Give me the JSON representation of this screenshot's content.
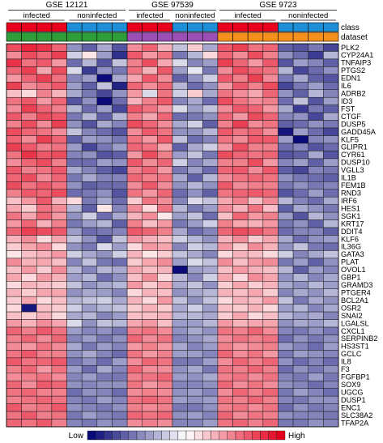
{
  "chart_data": {
    "type": "heatmap",
    "title": "",
    "studies": [
      {
        "name": "GSE 12121",
        "conditions": [
          "infected",
          "noninfected"
        ],
        "n": [
          4,
          4
        ]
      },
      {
        "name": "GSE 97539",
        "conditions": [
          "infected",
          "noninfected"
        ],
        "n": [
          3,
          3
        ]
      },
      {
        "name": "GSE 9723",
        "conditions": [
          "infected",
          "noninfected"
        ],
        "n": [
          4,
          4
        ]
      }
    ],
    "annotation_tracks": [
      {
        "label": "class",
        "colors": {
          "infected": "#e8001c",
          "noninfected": "#1e8fd6"
        }
      },
      {
        "label": "dataset",
        "colors": {
          "GSE 12121": "#2e9e3a",
          "GSE 97539": "#9b4fb5",
          "GSE 9723": "#f5901e"
        }
      }
    ],
    "genes": [
      "PLK2",
      "CYP24A1",
      "TNFAIP3",
      "PTGS2",
      "EDN1",
      "IL6",
      "ADRB2",
      "ID3",
      "FST",
      "CTGF",
      "DUSP5",
      "GADD45A",
      "KLF5",
      "GLIPR1",
      "CYR61",
      "DUSP10",
      "VGLL3",
      "IL1B",
      "FEM1B",
      "RND3",
      "IRF6",
      "HES1",
      "SGK1",
      "KRT17",
      "DDIT4",
      "KLF6",
      "IL36G",
      "GATA3",
      "PLAT",
      "OVOL1",
      "GBP1",
      "GRAMD3",
      "PTGER4",
      "BCL2A1",
      "OSR2",
      "SNAI2",
      "LGALSL",
      "CXCL1",
      "SERPINB2",
      "HS3ST1",
      "GCLC",
      "IL8",
      "F3",
      "FGFBP1",
      "SOX9",
      "UGCG",
      "DUSP1",
      "ENC1",
      "SLC38A2",
      "TFAP2A"
    ],
    "value_range": [
      -2,
      2
    ],
    "color_scale": {
      "low": "#0a0a78",
      "mid": "#ffffff",
      "high": "#e3001b",
      "low_label": "Low",
      "high_label": "High"
    },
    "matrix": [
      [
        1.4,
        1.7,
        1.6,
        1.2,
        -0.9,
        -1.3,
        -0.7,
        -1.4,
        0.9,
        1.2,
        0.6,
        -0.5,
        0.4,
        -0.7,
        1.3,
        1.5,
        1.1,
        1.2,
        -1.3,
        -1.4,
        -1.1,
        -1.5
      ],
      [
        0.9,
        1.4,
        1.2,
        1.5,
        -0.4,
        0.2,
        -0.8,
        -1.7,
        1.3,
        0.8,
        1.1,
        -1.1,
        -0.6,
        0.3,
        1.2,
        0.9,
        1.4,
        1.0,
        -0.9,
        -1.2,
        -1.6,
        -0.6
      ],
      [
        1.6,
        1.1,
        1.3,
        0.8,
        -1.2,
        -0.6,
        -1.4,
        -0.5,
        1.0,
        1.4,
        0.7,
        -0.3,
        -1.0,
        -0.8,
        1.5,
        1.2,
        0.8,
        1.3,
        -1.4,
        -0.8,
        -1.0,
        -1.3
      ],
      [
        1.2,
        1.5,
        0.7,
        1.4,
        -0.3,
        -1.6,
        -0.9,
        -1.1,
        1.1,
        0.6,
        1.3,
        -0.8,
        -0.2,
        -1.1,
        0.9,
        1.4,
        1.2,
        1.1,
        -0.6,
        -1.5,
        -1.2,
        -0.9
      ],
      [
        0.8,
        1.2,
        1.5,
        1.1,
        -1.0,
        -0.8,
        -2.0,
        -0.7,
        0.7,
        1.3,
        0.9,
        -1.3,
        -0.9,
        -0.4,
        1.3,
        1.0,
        1.5,
        0.9,
        -1.1,
        -0.7,
        -1.3,
        -1.4
      ],
      [
        1.5,
        0.9,
        1.1,
        1.3,
        -0.8,
        -1.3,
        -0.5,
        -1.8,
        1.2,
        0.9,
        1.2,
        -0.6,
        -1.2,
        -0.9,
        0.8,
        1.3,
        1.0,
        1.4,
        -1.5,
        -1.1,
        -0.8,
        -1.2
      ],
      [
        0.5,
        0.3,
        1.0,
        0.6,
        -0.7,
        -1.1,
        -1.5,
        -0.9,
        0.8,
        -0.3,
        1.1,
        -0.4,
        0.4,
        -0.7,
        1.1,
        0.9,
        0.7,
        1.2,
        -0.9,
        -1.3,
        -0.6,
        -1.0
      ],
      [
        1.1,
        1.3,
        0.8,
        1.2,
        -1.4,
        -0.9,
        -2.0,
        -1.2,
        0.6,
        1.0,
        1.3,
        -1.0,
        -0.7,
        -1.2,
        1.4,
        1.1,
        0.9,
        1.0,
        -1.2,
        -0.5,
        -1.4,
        -0.8
      ],
      [
        0.9,
        1.5,
        1.2,
        1.0,
        -0.6,
        -1.2,
        -0.8,
        -1.5,
        1.3,
        1.1,
        0.8,
        -0.3,
        -0.8,
        -0.5,
        0.9,
        1.3,
        1.2,
        0.8,
        -0.7,
        -1.6,
        -1.1,
        -1.3
      ],
      [
        1.3,
        1.0,
        1.4,
        1.3,
        -1.1,
        -0.6,
        -1.3,
        -0.6,
        1.0,
        0.7,
        1.2,
        -1.2,
        -1.1,
        -0.9,
        1.2,
        0.8,
        1.4,
        1.2,
        -1.0,
        -0.9,
        -1.5,
        -0.7
      ],
      [
        1.0,
        1.4,
        0.9,
        1.5,
        -0.9,
        -1.4,
        -0.7,
        -1.0,
        1.4,
        1.2,
        0.9,
        -0.7,
        -0.4,
        -1.3,
        1.0,
        1.5,
        0.9,
        1.1,
        -1.3,
        -1.2,
        -0.9,
        -1.1
      ],
      [
        1.4,
        1.2,
        1.1,
        0.9,
        -0.5,
        -1.0,
        -1.2,
        -1.4,
        0.9,
        1.3,
        1.1,
        -0.9,
        -0.9,
        -0.6,
        1.3,
        1.1,
        1.2,
        0.9,
        -1.9,
        -0.8,
        -1.2,
        -1.5
      ],
      [
        1.2,
        0.9,
        1.5,
        1.2,
        -1.3,
        -0.8,
        -0.9,
        -1.1,
        1.1,
        0.8,
        1.3,
        -0.5,
        -1.2,
        -1.0,
        1.1,
        0.9,
        1.3,
        1.3,
        -0.8,
        -2.0,
        -1.0,
        -0.9
      ],
      [
        1.5,
        1.3,
        1.0,
        1.1,
        -0.8,
        -1.5,
        -1.1,
        -0.8,
        1.2,
        1.1,
        0.7,
        -1.3,
        -0.7,
        -0.4,
        0.8,
        1.4,
        1.0,
        1.0,
        -1.2,
        -1.0,
        -1.4,
        -1.2
      ],
      [
        1.1,
        1.6,
        1.3,
        1.4,
        -1.0,
        -0.9,
        -1.4,
        -1.3,
        0.8,
        1.4,
        1.0,
        -0.8,
        -0.5,
        -1.1,
        1.4,
        1.2,
        1.1,
        1.2,
        -1.4,
        -1.3,
        -0.7,
        -1.4
      ],
      [
        0.9,
        1.2,
        1.4,
        1.0,
        -1.2,
        -1.2,
        -0.8,
        -0.9,
        1.3,
        0.9,
        1.2,
        -0.4,
        -1.0,
        -0.7,
        1.0,
        1.0,
        1.4,
        0.8,
        -1.0,
        -0.8,
        -1.3,
        -0.8
      ],
      [
        1.3,
        1.0,
        1.1,
        1.3,
        -0.7,
        -1.0,
        -1.3,
        -1.5,
        1.0,
        1.2,
        0.8,
        -1.1,
        -0.8,
        -1.2,
        1.2,
        1.3,
        0.9,
        1.3,
        -1.3,
        -1.5,
        -1.0,
        -1.1
      ],
      [
        1.2,
        1.4,
        0.9,
        1.2,
        -1.1,
        -0.7,
        -1.0,
        -1.0,
        1.2,
        1.0,
        1.1,
        -0.7,
        -1.3,
        -0.6,
        0.9,
        1.1,
        1.2,
        1.1,
        -0.9,
        -1.1,
        -1.2,
        -1.3
      ],
      [
        1.4,
        1.1,
        1.3,
        1.1,
        -0.9,
        -1.3,
        -1.2,
        -1.2,
        0.9,
        1.3,
        0.9,
        -0.9,
        -0.6,
        -0.9,
        1.3,
        0.9,
        1.0,
        1.0,
        -1.1,
        -0.9,
        -1.1,
        -1.0
      ],
      [
        1.0,
        1.3,
        1.2,
        1.4,
        -1.2,
        -1.1,
        -0.9,
        -1.4,
        1.1,
        0.8,
        1.2,
        -1.2,
        -0.9,
        -1.3,
        1.1,
        1.2,
        1.3,
        1.2,
        -1.4,
        -1.2,
        -0.8,
        -1.2
      ],
      [
        0.5,
        0.8,
        1.3,
        0.6,
        0.3,
        -1.1,
        -0.7,
        -1.2,
        0.4,
        1.1,
        0.9,
        -1.0,
        -0.3,
        -0.5,
        0.7,
        1.0,
        0.5,
        0.9,
        -0.6,
        -1.0,
        -1.2,
        -0.7
      ],
      [
        0.7,
        0.4,
        1.1,
        0.9,
        -0.6,
        -1.3,
        0.2,
        -1.0,
        0.9,
        0.3,
        1.1,
        -0.6,
        -1.1,
        -0.8,
        0.9,
        0.6,
        1.1,
        0.5,
        -1.3,
        -0.7,
        -0.9,
        -1.1
      ],
      [
        1.1,
        0.7,
        1.2,
        0.8,
        -0.9,
        -0.4,
        -1.2,
        -0.7,
        0.6,
        0.9,
        0.2,
        -0.8,
        -0.5,
        -1.2,
        0.5,
        1.2,
        0.8,
        1.0,
        -0.8,
        -1.4,
        -0.6,
        -0.9
      ],
      [
        0.8,
        1.2,
        0.6,
        1.0,
        -1.1,
        -0.8,
        -0.6,
        -1.3,
        1.0,
        0.5,
        0.8,
        -1.1,
        -0.8,
        -0.4,
        1.0,
        0.7,
        0.6,
        0.8,
        -1.1,
        -0.9,
        -1.3,
        -0.6
      ],
      [
        1.2,
        1.5,
        1.4,
        1.3,
        -0.8,
        -1.2,
        -1.1,
        -1.0,
        1.3,
        1.2,
        1.0,
        -0.7,
        -1.2,
        -1.0,
        1.2,
        1.4,
        1.3,
        1.1,
        -1.2,
        -1.0,
        -1.0,
        -1.3
      ],
      [
        0.6,
        0.9,
        0.3,
        0.7,
        -0.5,
        -0.9,
        -1.4,
        -0.5,
        0.8,
        0.6,
        0.5,
        -0.4,
        -0.6,
        -0.9,
        0.6,
        0.9,
        0.4,
        0.7,
        -0.7,
        -1.2,
        -0.9,
        -0.8
      ],
      [
        0.4,
        0.7,
        0.9,
        0.3,
        -0.9,
        -1.1,
        -0.3,
        -0.8,
        0.3,
        0.8,
        0.7,
        -1.0,
        -0.4,
        -0.6,
        0.8,
        0.4,
        0.9,
        0.6,
        -0.9,
        -0.5,
        -1.1,
        -1.2
      ],
      [
        0.2,
        0.5,
        0.6,
        0.8,
        -0.4,
        -0.7,
        -0.9,
        -0.4,
        0.6,
        0.2,
        0.4,
        -0.5,
        -0.7,
        -1.0,
        0.3,
        0.6,
        0.5,
        0.3,
        -0.4,
        -1.0,
        -0.7,
        -0.5
      ],
      [
        0.9,
        0.6,
        0.7,
        0.5,
        -1.0,
        -0.5,
        -1.1,
        -1.2,
        0.4,
        0.7,
        0.9,
        -0.8,
        -0.3,
        -0.5,
        0.9,
        0.5,
        0.8,
        0.9,
        -1.1,
        -0.8,
        -1.3,
        -0.9
      ],
      [
        0.5,
        0.8,
        0.4,
        0.9,
        -0.6,
        -1.0,
        -0.6,
        -0.7,
        0.7,
        0.5,
        0.6,
        -2.0,
        -0.8,
        -0.7,
        0.5,
        0.8,
        0.6,
        0.5,
        -0.6,
        -1.3,
        -0.8,
        -1.0
      ],
      [
        0.7,
        0.3,
        0.8,
        0.6,
        -0.8,
        -0.6,
        -1.2,
        -0.9,
        0.5,
        0.9,
        0.3,
        -0.6,
        -1.0,
        -0.4,
        0.7,
        0.3,
        0.9,
        0.7,
        -0.9,
        -0.6,
        -1.0,
        -0.7
      ],
      [
        0.3,
        0.6,
        0.5,
        0.4,
        -0.5,
        -0.9,
        -0.7,
        -0.6,
        0.8,
        0.4,
        0.7,
        -0.7,
        -0.5,
        -0.9,
        0.4,
        0.7,
        0.4,
        0.6,
        -0.7,
        -0.9,
        -0.6,
        -0.8
      ],
      [
        0.6,
        0.4,
        0.7,
        0.7,
        -0.9,
        -0.7,
        -0.8,
        -1.0,
        0.3,
        0.6,
        0.5,
        -0.9,
        -0.7,
        -0.6,
        0.6,
        0.5,
        0.7,
        0.4,
        -1.0,
        -0.7,
        -0.9,
        -0.6
      ],
      [
        0.4,
        0.7,
        0.3,
        0.5,
        -0.6,
        -0.5,
        -0.4,
        -0.7,
        0.6,
        0.3,
        0.8,
        -0.5,
        -0.9,
        -0.5,
        0.3,
        0.6,
        0.5,
        0.8,
        -0.5,
        -1.1,
        -0.7,
        -0.9
      ],
      [
        0.3,
        -1.9,
        0.5,
        0.4,
        -0.4,
        -0.8,
        -0.6,
        -0.5,
        0.4,
        0.6,
        0.4,
        -0.7,
        -0.4,
        -0.8,
        0.5,
        0.4,
        0.6,
        0.3,
        -0.8,
        -0.6,
        -1.0,
        -0.7
      ],
      [
        0.5,
        0.4,
        0.6,
        0.3,
        -0.7,
        -0.6,
        -1.0,
        -0.8,
        0.5,
        0.5,
        0.6,
        -0.6,
        -0.6,
        -0.7,
        0.4,
        0.7,
        0.3,
        0.5,
        -0.6,
        -0.8,
        -0.7,
        -1.0
      ],
      [
        0.8,
        0.6,
        0.9,
        0.7,
        -0.3,
        -0.9,
        -0.5,
        -0.6,
        0.7,
        0.8,
        0.5,
        -0.8,
        -0.8,
        -0.6,
        0.8,
        0.6,
        0.7,
        0.7,
        -0.9,
        -0.7,
        -0.8,
        -0.6
      ],
      [
        1.2,
        1.0,
        1.3,
        1.1,
        -0.8,
        -1.0,
        -0.9,
        -1.1,
        1.0,
        1.1,
        0.9,
        -0.9,
        -0.7,
        -0.9,
        1.1,
        1.0,
        1.2,
        0.9,
        -1.0,
        -1.1,
        -0.9,
        -1.1
      ],
      [
        1.0,
        1.2,
        0.9,
        1.2,
        -1.0,
        -0.8,
        -1.1,
        -0.9,
        1.2,
        0.9,
        1.1,
        -1.0,
        -0.9,
        -0.7,
        0.9,
        1.1,
        1.0,
        1.1,
        -1.2,
        -0.9,
        -1.1,
        -0.9
      ],
      [
        0.9,
        0.8,
        1.1,
        0.9,
        -0.7,
        -1.1,
        -0.8,
        -1.0,
        0.8,
        1.0,
        0.8,
        -0.7,
        -1.0,
        -0.8,
        1.0,
        0.8,
        0.9,
        1.0,
        -0.8,
        -1.0,
        -1.2,
        -0.8
      ],
      [
        1.1,
        1.3,
        1.0,
        1.0,
        -0.9,
        -0.7,
        -1.0,
        -1.2,
        1.1,
        0.8,
        1.0,
        -0.8,
        -0.8,
        -1.0,
        1.2,
        0.9,
        1.1,
        0.8,
        -1.1,
        -0.8,
        -0.9,
        -1.0
      ],
      [
        1.3,
        1.1,
        1.2,
        1.3,
        -1.1,
        -0.9,
        -1.2,
        -0.8,
        0.9,
        1.2,
        1.1,
        -1.1,
        -1.1,
        -0.8,
        0.9,
        1.2,
        1.0,
        1.2,
        -0.9,
        -1.2,
        -1.0,
        -1.2
      ],
      [
        1.0,
        1.2,
        0.8,
        1.1,
        -0.8,
        -1.2,
        -0.7,
        -1.0,
        1.2,
        0.9,
        0.9,
        -0.9,
        -0.7,
        -1.1,
        1.1,
        1.0,
        1.2,
        1.0,
        -1.2,
        -0.9,
        -1.1,
        -0.9
      ],
      [
        0.9,
        1.0,
        1.1,
        0.9,
        -1.0,
        -0.8,
        -1.1,
        -1.1,
        1.0,
        1.1,
        1.2,
        -0.8,
        -0.9,
        -0.7,
        1.0,
        1.1,
        0.9,
        1.1,
        -1.0,
        -1.1,
        -0.8,
        -1.1
      ],
      [
        1.2,
        0.9,
        1.3,
        1.2,
        -0.9,
        -1.0,
        -0.9,
        -0.9,
        1.1,
        0.8,
        1.0,
        -1.0,
        -1.0,
        -0.9,
        1.2,
        0.9,
        1.1,
        0.9,
        -0.9,
        -1.0,
        -1.2,
        -1.0
      ],
      [
        1.1,
        1.2,
        1.0,
        1.0,
        -1.2,
        -0.9,
        -1.0,
        -1.2,
        0.9,
        1.0,
        0.9,
        -0.9,
        -0.8,
        -1.0,
        0.9,
        1.2,
        1.0,
        1.2,
        -1.1,
        -0.8,
        -1.0,
        -1.2
      ],
      [
        1.0,
        1.1,
        1.2,
        1.1,
        -1.0,
        -1.1,
        -0.8,
        -1.0,
        1.1,
        1.2,
        1.1,
        -0.8,
        -0.9,
        -0.8,
        1.1,
        1.0,
        1.2,
        1.0,
        -1.0,
        -1.1,
        -0.9,
        -0.9
      ],
      [
        1.3,
        1.0,
        1.1,
        1.3,
        -0.9,
        -1.0,
        -1.1,
        -0.9,
        1.0,
        0.9,
        1.0,
        -1.1,
        -1.1,
        -0.9,
        1.0,
        1.1,
        0.9,
        1.1,
        -1.2,
        -0.9,
        -1.1,
        -1.0
      ],
      [
        1.1,
        1.3,
        1.0,
        1.1,
        -1.1,
        -0.8,
        -1.0,
        -1.1,
        1.2,
        1.1,
        1.2,
        -0.9,
        -0.8,
        -1.0,
        1.2,
        0.9,
        1.1,
        1.0,
        -0.9,
        -1.0,
        -1.0,
        -1.1
      ],
      [
        1.2,
        1.1,
        1.3,
        1.0,
        -1.0,
        -1.1,
        -0.9,
        -1.0,
        0.9,
        1.0,
        0.9,
        -1.0,
        -1.0,
        -0.8,
        1.1,
        1.2,
        1.0,
        1.2,
        -1.1,
        -1.1,
        -0.9,
        -1.0
      ]
    ]
  }
}
